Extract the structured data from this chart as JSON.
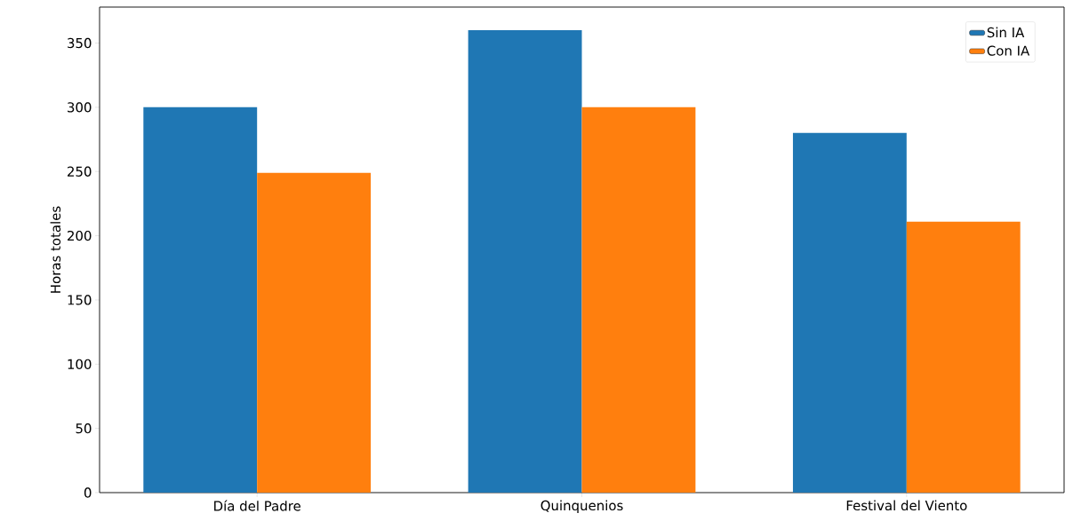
{
  "chart_data": {
    "type": "bar",
    "ylabel": "Horas totales",
    "categories": [
      "Día del Padre",
      "Quinquenios",
      "Festival del Viento"
    ],
    "series": [
      {
        "name": "Sin IA",
        "color": "#1f77b4",
        "values": [
          300,
          360,
          280
        ]
      },
      {
        "name": "Con IA",
        "color": "#ff7f0e",
        "values": [
          249,
          300,
          211
        ]
      }
    ],
    "ylim": [
      0,
      378
    ],
    "yticks": [
      0,
      50,
      100,
      150,
      200,
      250,
      300,
      350
    ],
    "grid": false,
    "legend": "top right"
  }
}
